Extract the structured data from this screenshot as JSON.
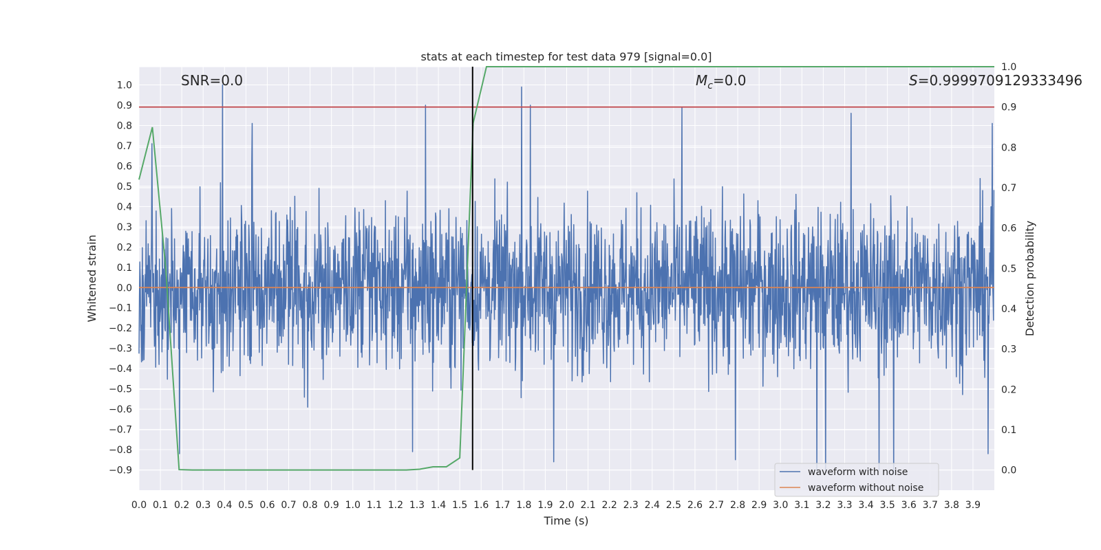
{
  "chart_data": {
    "type": "line",
    "title": "stats at each timestep for test data 979 [signal=0.0]",
    "xlabel": "Time (s)",
    "ylabel": "Whitened strain",
    "y2label": "Detection probability",
    "xlim": [
      0.0,
      4.0
    ],
    "ylim": [
      -1.0,
      1.09
    ],
    "y2lim": [
      -0.05,
      1.0
    ],
    "x_ticks": [
      0.0,
      0.1,
      0.2,
      0.3,
      0.4,
      0.5,
      0.6,
      0.7,
      0.8,
      0.9,
      1.0,
      1.1,
      1.2,
      1.3,
      1.4,
      1.5,
      1.6,
      1.7,
      1.8,
      1.9,
      2.0,
      2.1,
      2.2,
      2.3,
      2.4,
      2.5,
      2.6,
      2.7,
      2.8,
      2.9,
      3.0,
      3.1,
      3.2,
      3.3,
      3.4,
      3.5,
      3.6,
      3.7,
      3.8,
      3.9
    ],
    "x_tick_labels": [
      "0.0",
      "0.1",
      "0.2",
      "0.3",
      "0.4",
      "0.5",
      "0.6",
      "0.7",
      "0.8",
      "0.9",
      "1.0",
      "1.1",
      "1.2",
      "1.3",
      "1.4",
      "1.5",
      "1.6",
      "1.7",
      "1.8",
      "1.9",
      "2.0",
      "2.1",
      "2.2",
      "2.3",
      "2.4",
      "2.5",
      "2.6",
      "2.7",
      "2.8",
      "2.9",
      "3.0",
      "3.1",
      "3.2",
      "3.3",
      "3.4",
      "3.5",
      "3.6",
      "3.7",
      "3.8",
      "3.9"
    ],
    "y_ticks": [
      1.0,
      0.9,
      0.8,
      0.7,
      0.6,
      0.5,
      0.4,
      0.3,
      0.2,
      0.1,
      0.0,
      -0.1,
      -0.2,
      -0.3,
      -0.4,
      -0.5,
      -0.6,
      -0.7,
      -0.8,
      -0.9
    ],
    "y_tick_labels": [
      "1.0",
      "0.9",
      "0.8",
      "0.7",
      "0.6",
      "0.5",
      "0.4",
      "0.3",
      "0.2",
      "0.1",
      "0.0",
      "−0.1",
      "−0.2",
      "−0.3",
      "−0.4",
      "−0.5",
      "−0.6",
      "−0.7",
      "−0.8",
      "−0.9"
    ],
    "y2_ticks": [
      1.0,
      0.9,
      0.8,
      0.7,
      0.6,
      0.5,
      0.4,
      0.3,
      0.2,
      0.1,
      0.0
    ],
    "y2_tick_labels": [
      "1.0",
      "0.9",
      "0.8",
      "0.7",
      "0.6",
      "0.5",
      "0.4",
      "0.3",
      "0.2",
      "0.1",
      "0.0"
    ],
    "annotations": {
      "snr": "SNR=0.0",
      "mc_symbol": "M",
      "mc_sub": "c",
      "mc_value": "=0.0",
      "s_symbol": "S",
      "s_value": "=0.9999709129333496"
    },
    "series": [
      {
        "name": "waveform with noise",
        "axis": "left",
        "color": "#4c72b0",
        "description_stats": {
          "n_samples": 2048,
          "min": -0.93,
          "max": 1.0
        },
        "peaks": [
          {
            "x": 0.39,
            "y": 1.0
          },
          {
            "x": 1.79,
            "y": 0.99
          },
          {
            "x": 1.34,
            "y": 0.9
          },
          {
            "x": 1.83,
            "y": 0.9
          },
          {
            "x": 2.54,
            "y": 0.89
          },
          {
            "x": 3.33,
            "y": 0.86
          },
          {
            "x": 0.53,
            "y": 0.81
          },
          {
            "x": 3.99,
            "y": 0.81
          },
          {
            "x": 0.06,
            "y": 0.71
          },
          {
            "x": 0.19,
            "y": -0.82
          },
          {
            "x": 1.28,
            "y": -0.81
          },
          {
            "x": 1.94,
            "y": -0.86
          },
          {
            "x": 2.79,
            "y": -0.85
          },
          {
            "x": 3.17,
            "y": -0.9
          },
          {
            "x": 3.21,
            "y": -0.9
          },
          {
            "x": 3.46,
            "y": -0.9
          },
          {
            "x": 3.53,
            "y": -0.92
          },
          {
            "x": 3.97,
            "y": -0.82
          }
        ]
      },
      {
        "name": "waveform without noise",
        "axis": "left",
        "color": "#dd8452",
        "x": [
          0.0,
          4.0
        ],
        "values": [
          0.0,
          0.0
        ]
      },
      {
        "name": "detection probability",
        "axis": "right",
        "color": "#55a868",
        "x": [
          0.0,
          0.0625,
          0.125,
          0.1875,
          0.25,
          0.3125,
          0.375,
          0.4375,
          0.5,
          0.5625,
          0.625,
          0.6875,
          0.75,
          0.8125,
          0.875,
          0.9375,
          1.0,
          1.0625,
          1.125,
          1.1875,
          1.25,
          1.3125,
          1.375,
          1.4375,
          1.5,
          1.5625,
          1.625,
          1.6875,
          1.75,
          1.8125,
          1.875,
          1.9375,
          2.0,
          2.5,
          3.0,
          3.5,
          4.0
        ],
        "values": [
          0.72,
          0.85,
          0.5,
          0.001,
          0.0,
          0.0,
          0.0,
          0.0,
          0.0,
          0.0,
          0.0,
          0.0,
          0.0,
          0.0,
          0.0,
          0.0,
          0.0,
          0.0,
          0.0,
          0.0,
          0.0,
          0.002,
          0.008,
          0.008,
          0.03,
          0.86,
          1.0,
          1.0,
          1.0,
          1.0,
          1.0,
          1.0,
          1.0,
          1.0,
          1.0,
          1.0,
          1.0
        ]
      }
    ],
    "hlines": [
      {
        "y2": 0.9,
        "color": "#c44e52"
      }
    ],
    "vlines": [
      {
        "x": 1.56,
        "color": "#000000"
      }
    ],
    "legend": {
      "placement": "lower-right",
      "entries": [
        {
          "label": "waveform with noise",
          "color": "#4c72b0"
        },
        {
          "label": "waveform without noise",
          "color": "#dd8452"
        }
      ]
    },
    "style": {
      "plot_bg": "#eaeaf2",
      "grid_color": "#ffffff",
      "grid": true
    }
  }
}
